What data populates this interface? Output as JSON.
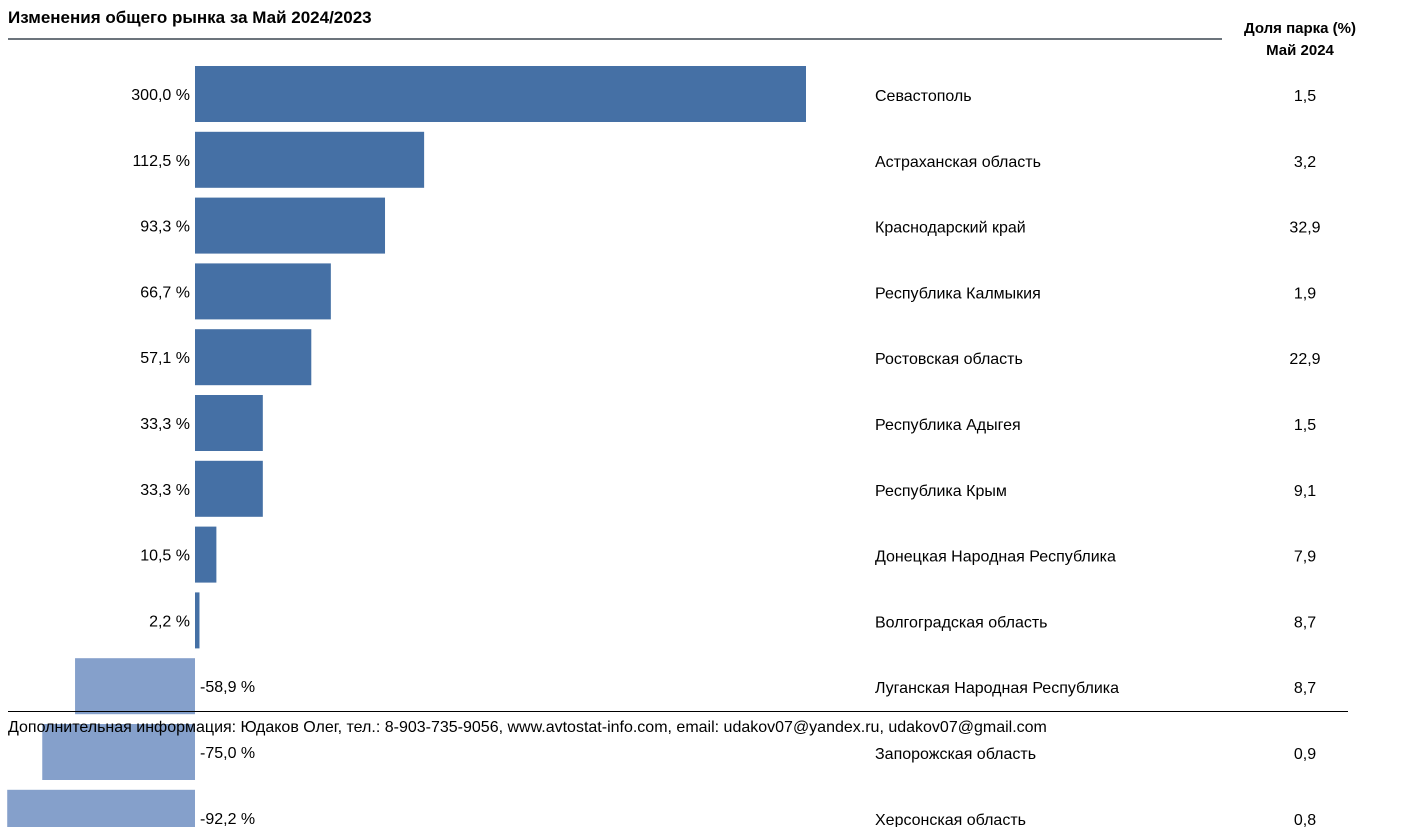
{
  "title": "Изменения общего рынка за Май 2024/2023",
  "share_header": {
    "line1": "Доля парка (%)",
    "line2": "Май 2024"
  },
  "footer": "Дополнительная информация: Юдаков Олег, тел.: 8-903-735-9056, www.avtostat-info.com, email: udakov07@yandex.ru, udakov07@gmail.com",
  "colors": {
    "positive": "#4570a5",
    "negative": "#85a0cb",
    "title_rule": "#6c747c"
  },
  "chart_data": {
    "type": "bar",
    "orientation": "horizontal",
    "title": "Изменения общего рынка за Май 2024/2023",
    "categories": [
      "Севастополь",
      "Астраханская область",
      "Краснодарский край",
      "Республика Калмыкия",
      "Ростовская область",
      "Республика Адыгея",
      "Республика Крым",
      "Донецкая Народная Республика",
      "Волгоградская область",
      "Луганская Народная Республика",
      "Запорожская область",
      "Херсонская область"
    ],
    "values": [
      300.0,
      112.5,
      93.3,
      66.7,
      57.1,
      33.3,
      33.3,
      10.5,
      2.2,
      -58.9,
      -75.0,
      -92.2
    ],
    "value_labels": [
      "300,0 %",
      "112,5 %",
      "93,3 %",
      "66,7 %",
      "57,1 %",
      "33,3 %",
      "33,3 %",
      "10,5 %",
      "2,2 %",
      "-58,9 %",
      "-75,0 %",
      "-92,2 %"
    ],
    "shares": [
      "1,5",
      "3,2",
      "32,9",
      "1,9",
      "22,9",
      "1,5",
      "9,1",
      "7,9",
      "8,7",
      "8,7",
      "0,9",
      "0,8"
    ],
    "xlim": [
      -92.2,
      300.0
    ],
    "grid": false,
    "legend": "none"
  }
}
